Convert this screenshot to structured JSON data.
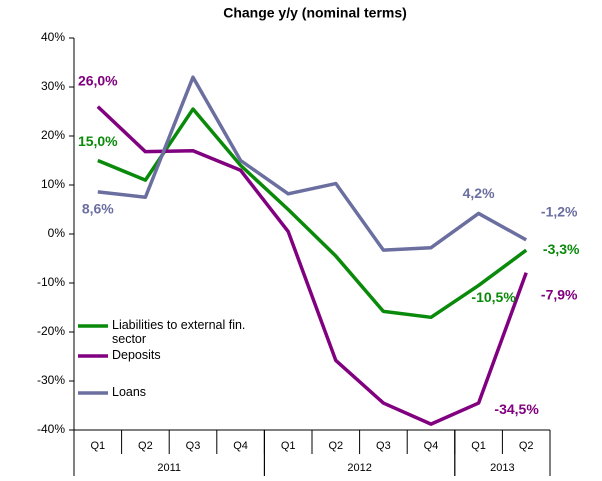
{
  "chart_data": {
    "type": "line",
    "title": "Change y/y (nominal terms)",
    "categories": [
      "Q1",
      "Q2",
      "Q3",
      "Q4",
      "Q1",
      "Q2",
      "Q3",
      "Q4",
      "Q1",
      "Q2"
    ],
    "groups": [
      {
        "label": "2011",
        "count": 4
      },
      {
        "label": "2012",
        "count": 4
      },
      {
        "label": "2013",
        "count": 2
      }
    ],
    "series": [
      {
        "name": "Liabilities to external fin. sector",
        "color": "#0a8a0a",
        "values": [
          15.0,
          11.0,
          25.5,
          14.0,
          5.0,
          -4.5,
          -15.8,
          -17.0,
          -10.5,
          -3.3
        ],
        "value_labels": [
          "15,0%",
          null,
          null,
          null,
          null,
          null,
          null,
          null,
          "-10,5%",
          "-3,3%"
        ]
      },
      {
        "name": "Deposits",
        "color": "#800080",
        "values": [
          26.0,
          16.8,
          17.0,
          13.0,
          0.5,
          -25.8,
          -34.5,
          -38.8,
          -34.5,
          -7.9
        ],
        "value_labels": [
          "26,0%",
          null,
          null,
          null,
          null,
          null,
          null,
          null,
          "-34,5%",
          "-7,9%"
        ]
      },
      {
        "name": "Loans",
        "color": "#6b6fa0",
        "values": [
          8.6,
          7.5,
          32.0,
          15.0,
          8.2,
          10.3,
          -3.3,
          -2.8,
          4.2,
          -1.2
        ],
        "value_labels": [
          "8,6%",
          null,
          null,
          null,
          null,
          null,
          null,
          null,
          "4,2%",
          "-1,2%"
        ]
      }
    ],
    "ylim": [
      -40,
      40
    ],
    "yticks": [
      {
        "value": -40,
        "label": "-40%"
      },
      {
        "value": -30,
        "label": "-30%"
      },
      {
        "value": -20,
        "label": "-20%"
      },
      {
        "value": -10,
        "label": "-10%"
      },
      {
        "value": 0,
        "label": "0%"
      },
      {
        "value": 10,
        "label": "10%"
      },
      {
        "value": 20,
        "label": "20%"
      },
      {
        "value": 30,
        "label": "30%"
      },
      {
        "value": 40,
        "label": "40%"
      }
    ],
    "legend": "lower left"
  }
}
